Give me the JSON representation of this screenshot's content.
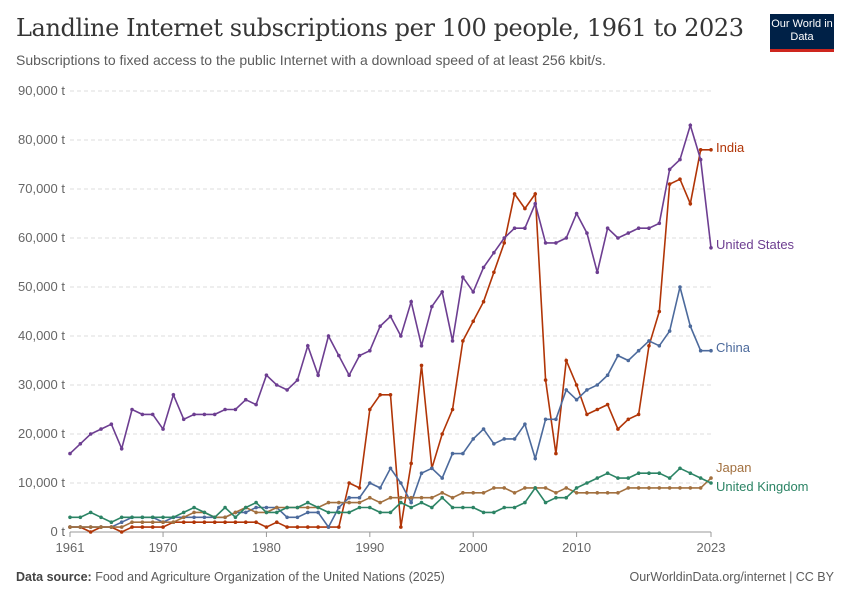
{
  "header": {
    "title": "Landline Internet subscriptions per 100 people, 1961 to 2023",
    "subtitle": "Subscriptions to fixed access to the public Internet with a download speed of at least 256 kbit/s.",
    "logo": "Our World in Data"
  },
  "footer": {
    "source_label": "Data source:",
    "source": "Food and Agriculture Organization of the United Nations (2025)",
    "right": "OurWorldinData.org/internet | CC BY"
  },
  "chart_data": {
    "type": "line",
    "title": "Landline Internet subscriptions per 100 people, 1961 to 2023",
    "x_start": 1961,
    "x_end": 2023,
    "xticks": [
      1961,
      1970,
      1980,
      1990,
      2000,
      2010,
      2023
    ],
    "ylim": [
      0,
      90000
    ],
    "yticks": [
      0,
      10000,
      20000,
      30000,
      40000,
      50000,
      60000,
      70000,
      80000,
      90000
    ],
    "ytick_labels": [
      "0 t",
      "10,000 t",
      "20,000 t",
      "30,000 t",
      "40,000 t",
      "50,000 t",
      "60,000 t",
      "70,000 t",
      "80,000 t",
      "90,000 t"
    ],
    "grid": "horizontal dashed",
    "legend": "line-end labels",
    "series": [
      {
        "name": "India",
        "color": "#b13507",
        "values": [
          1000,
          1000,
          0,
          1000,
          1000,
          0,
          1000,
          1000,
          1000,
          1000,
          2000,
          2000,
          2000,
          2000,
          2000,
          2000,
          2000,
          2000,
          2000,
          1000,
          2000,
          1000,
          1000,
          1000,
          1000,
          1000,
          1000,
          10000,
          9000,
          25000,
          28000,
          28000,
          1000,
          14000,
          34000,
          13000,
          20000,
          25000,
          39000,
          43000,
          47000,
          53000,
          59000,
          69000,
          66000,
          69000,
          31000,
          16000,
          35000,
          30000,
          24000,
          25000,
          26000,
          21000,
          23000,
          24000,
          38000,
          45000,
          71000,
          72000,
          67000,
          78000,
          78000
        ]
      },
      {
        "name": "United States",
        "color": "#6d3e91",
        "values": [
          16000,
          18000,
          20000,
          21000,
          22000,
          17000,
          25000,
          24000,
          24000,
          21000,
          28000,
          23000,
          24000,
          24000,
          24000,
          25000,
          25000,
          27000,
          26000,
          32000,
          30000,
          29000,
          31000,
          38000,
          32000,
          40000,
          36000,
          32000,
          36000,
          37000,
          42000,
          44000,
          40000,
          47000,
          38000,
          46000,
          49000,
          39000,
          52000,
          49000,
          54000,
          57000,
          60000,
          62000,
          62000,
          67000,
          59000,
          59000,
          60000,
          65000,
          61000,
          53000,
          62000,
          60000,
          61000,
          62000,
          62000,
          63000,
          74000,
          76000,
          83000,
          76000,
          58000
        ]
      },
      {
        "name": "China",
        "color": "#4c6a9c",
        "values": [
          1000,
          1000,
          1000,
          1000,
          1000,
          2000,
          3000,
          3000,
          3000,
          2000,
          3000,
          3000,
          3000,
          3000,
          3000,
          3000,
          4000,
          4000,
          5000,
          5000,
          5000,
          3000,
          3000,
          4000,
          4000,
          1000,
          5000,
          7000,
          7000,
          10000,
          9000,
          13000,
          10000,
          6000,
          12000,
          13000,
          11000,
          16000,
          16000,
          19000,
          21000,
          18000,
          19000,
          19000,
          22000,
          15000,
          23000,
          23000,
          29000,
          27000,
          29000,
          30000,
          32000,
          36000,
          35000,
          37000,
          39000,
          38000,
          41000,
          50000,
          42000,
          37000,
          37000
        ]
      },
      {
        "name": "Japan",
        "color": "#a2703f",
        "values": [
          1000,
          1000,
          1000,
          1000,
          1000,
          1000,
          2000,
          2000,
          2000,
          2000,
          2000,
          3000,
          4000,
          4000,
          3000,
          3000,
          4000,
          5000,
          4000,
          4000,
          5000,
          5000,
          5000,
          5000,
          5000,
          6000,
          6000,
          6000,
          6000,
          7000,
          6000,
          7000,
          7000,
          7000,
          7000,
          7000,
          8000,
          7000,
          8000,
          8000,
          8000,
          9000,
          9000,
          8000,
          9000,
          9000,
          9000,
          8000,
          9000,
          8000,
          8000,
          8000,
          8000,
          8000,
          9000,
          9000,
          9000,
          9000,
          9000,
          9000,
          9000,
          9000,
          11000
        ]
      },
      {
        "name": "United Kingdom",
        "color": "#2c8465",
        "values": [
          3000,
          3000,
          4000,
          3000,
          2000,
          3000,
          3000,
          3000,
          3000,
          3000,
          3000,
          4000,
          5000,
          4000,
          3000,
          5000,
          3000,
          5000,
          6000,
          4000,
          4000,
          5000,
          5000,
          6000,
          5000,
          4000,
          4000,
          4000,
          5000,
          5000,
          4000,
          4000,
          6000,
          5000,
          6000,
          5000,
          7000,
          5000,
          5000,
          5000,
          4000,
          4000,
          5000,
          5000,
          6000,
          9000,
          6000,
          7000,
          7000,
          9000,
          10000,
          11000,
          12000,
          11000,
          11000,
          12000,
          12000,
          12000,
          11000,
          13000,
          12000,
          11000,
          10000
        ]
      }
    ]
  }
}
